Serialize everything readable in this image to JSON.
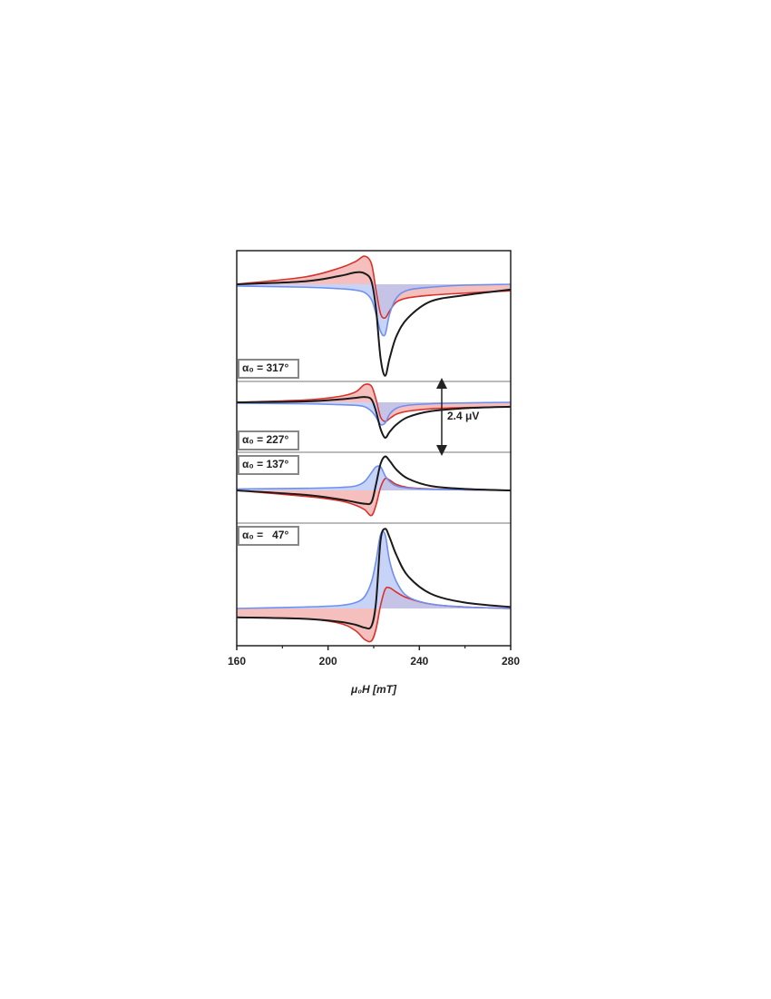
{
  "chart_data": {
    "type": "line",
    "x_label": "μ₀H [mT]",
    "x": [
      160,
      190,
      205,
      212,
      216,
      219,
      221,
      223,
      225,
      227,
      230,
      235,
      245,
      260,
      280
    ],
    "xlim": [
      160,
      280
    ],
    "xticks": [
      160,
      200,
      240,
      280
    ],
    "xticks_minor": [
      180,
      220,
      260
    ],
    "scale_bar": {
      "value": 2.4,
      "label": "2.4 μV"
    },
    "panels": [
      {
        "label": "α₀ = 317°",
        "series": [
          {
            "color": "#d9312b",
            "fill": "#f2a9a7",
            "values": [
              0,
              0.25,
              0.55,
              0.77,
              0.95,
              0.7,
              -0.2,
              -1.0,
              -1.14,
              -0.9,
              -0.6,
              -0.46,
              -0.37,
              -0.3,
              -0.22
            ]
          },
          {
            "color": "#6f8ff0",
            "fill": "#b4c5f6",
            "values": [
              -0.06,
              -0.1,
              -0.15,
              -0.2,
              -0.28,
              -0.52,
              -1.0,
              -1.6,
              -1.7,
              -1.0,
              -0.46,
              -0.2,
              -0.1,
              -0.03,
              0
            ]
          },
          {
            "color": "#1a1a1a",
            "values": [
              0,
              0.1,
              0.28,
              0.4,
              0.37,
              0.1,
              -0.83,
              -2.5,
              -3.1,
              -2.5,
              -1.75,
              -1.14,
              -0.58,
              -0.37,
              -0.18
            ]
          }
        ]
      },
      {
        "label": "α₀ = 227°",
        "series": [
          {
            "color": "#d9312b",
            "fill": "#f2a9a7",
            "values": [
              0,
              0.08,
              0.2,
              0.35,
              0.6,
              0.55,
              0.1,
              -0.5,
              -0.65,
              -0.55,
              -0.4,
              -0.3,
              -0.22,
              -0.18,
              -0.15
            ]
          },
          {
            "color": "#6f8ff0",
            "fill": "#b4c5f6",
            "values": [
              -0.03,
              -0.05,
              -0.08,
              -0.1,
              -0.15,
              -0.3,
              -0.5,
              -0.75,
              -0.7,
              -0.4,
              -0.2,
              -0.1,
              -0.05,
              -0.02,
              0
            ]
          },
          {
            "color": "#1a1a1a",
            "values": [
              0,
              0.03,
              0.1,
              0.15,
              0.18,
              0.1,
              -0.3,
              -0.9,
              -1.2,
              -1.0,
              -0.75,
              -0.5,
              -0.3,
              -0.2,
              -0.15
            ]
          }
        ]
      },
      {
        "label": "α₀ = 137°",
        "series": [
          {
            "color": "#d9312b",
            "fill": "#f2a9a7",
            "values": [
              0,
              -0.2,
              -0.35,
              -0.5,
              -0.65,
              -0.85,
              -0.5,
              0.1,
              0.4,
              0.35,
              0.2,
              0.1,
              0.05,
              0.02,
              0
            ]
          },
          {
            "color": "#6f8ff0",
            "fill": "#b4c5f6",
            "values": [
              0.05,
              0.07,
              0.1,
              0.15,
              0.3,
              0.6,
              0.8,
              0.8,
              0.5,
              0.3,
              0.15,
              0.08,
              0.04,
              0.02,
              0
            ]
          },
          {
            "color": "#1a1a1a",
            "values": [
              0,
              -0.15,
              -0.3,
              -0.4,
              -0.45,
              -0.4,
              0.2,
              0.9,
              1.15,
              1.0,
              0.7,
              0.4,
              0.15,
              0.05,
              0
            ]
          }
        ]
      },
      {
        "label": "α₀ =   47°",
        "series": [
          {
            "color": "#d9312b",
            "fill": "#f2a9a7",
            "values": [
              -0.3,
              -0.35,
              -0.5,
              -0.75,
              -1.05,
              -1.1,
              -0.7,
              0.1,
              0.65,
              0.7,
              0.55,
              0.35,
              0.15,
              0.05,
              0
            ]
          },
          {
            "color": "#6f8ff0",
            "fill": "#b4c5f6",
            "values": [
              0,
              0.05,
              0.1,
              0.2,
              0.4,
              0.9,
              1.6,
              2.5,
              2.5,
              1.6,
              0.9,
              0.4,
              0.15,
              0.05,
              0
            ]
          },
          {
            "color": "#1a1a1a",
            "values": [
              -0.3,
              -0.35,
              -0.45,
              -0.55,
              -0.65,
              -0.6,
              0.2,
              2.3,
              2.7,
              2.4,
              1.8,
              1.1,
              0.5,
              0.2,
              0.05
            ]
          }
        ]
      }
    ]
  }
}
